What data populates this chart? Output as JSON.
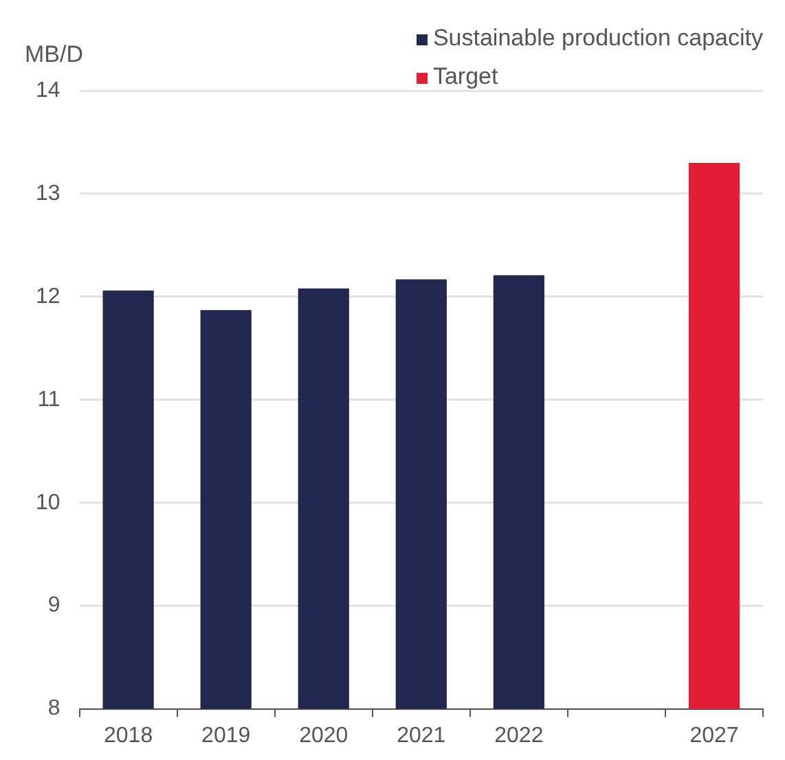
{
  "chart_data": {
    "type": "bar",
    "ylabel": "MB/D",
    "categories": [
      "2018",
      "2019",
      "2020",
      "2021",
      "2022",
      null,
      "2027"
    ],
    "series": [
      {
        "name": "Sustainable production capacity",
        "color": "#22274f",
        "values": [
          12.06,
          11.87,
          12.08,
          12.17,
          12.21,
          null,
          null
        ]
      },
      {
        "name": "Target",
        "color": "#e31d36",
        "values": [
          null,
          null,
          null,
          null,
          null,
          null,
          13.3
        ]
      }
    ],
    "ylim": [
      8,
      14
    ],
    "yticks": [
      8,
      9,
      10,
      11,
      12,
      13,
      14
    ],
    "grid": "y",
    "legend": "top right"
  }
}
